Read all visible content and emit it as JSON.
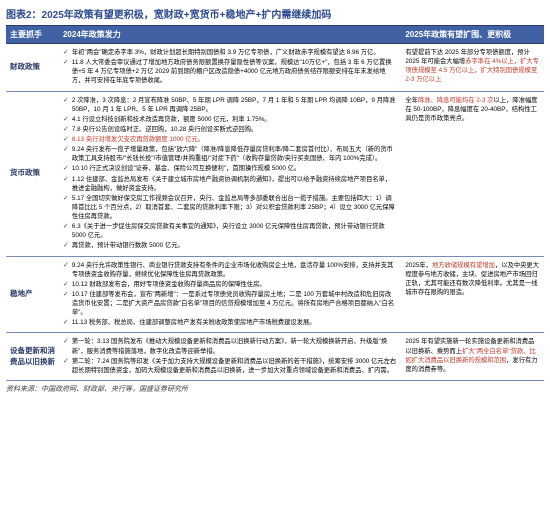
{
  "title": "图表2：2025年政策有望更积极，宽财政+宽货币+稳地产+扩内需继续加码",
  "headers": [
    "主要抓手",
    "2024年政策发力",
    "2025年政策有望扩围、更积极"
  ],
  "rows": [
    {
      "category": "财政政策",
      "policies_2024": [
        {
          "text": "年初\"两会\"确定赤字率 3%，财政计划超长期特别国债和 3.9 万亿专项债，广义财政赤字规模有望达 8.96 万亿。"
        },
        {
          "text": "11.8 人大常委会审议通过了增加地方政府债务限额置换存量隐性债等议案，规模达\"10万亿+\"，包括 3 年 6 万亿置换债+5 年 4 万亿专项债+2 万亿 2029 前到期的棚户区改造隐债+4000 亿元地方政府债务结存限额安排在年末发给地方，并可安排在年底专项债收尾。"
        }
      ],
      "outlook_2025_pre": "有望提前下达 2025 年部分专项债额度，预计 2025 年可能会大幅增",
      "outlook_2025_hl": "赤字率在 4%以上，扩大专项债规模至 4.5 万亿以上，扩大特别国债规模至 2-3 万亿以上"
    },
    {
      "category": "货币政策",
      "policies_2024": [
        {
          "text": "2 次降准，3 次降息：2 月宣布降准 50BP、5 年期 LPR 调降 25BP，7 月 1 年和 5 年期 LPR 均调降 10BP，9 月降准 50BP，10 月 1 年 LPR、5 年 LPR 再调降 25BP。"
        },
        {
          "text": "4.1 行设立科技创新和技术改造再贷款，额度 5000 亿元，利率 1.75%。"
        },
        {
          "text": "7.8 央行公告创设临时正、逆回购，10.28 央行创设买断式逆回购。"
        },
        {
          "text": "8.13 央行对增发欠支农再贷款额度 1000 亿元。",
          "hl": true
        },
        {
          "text": "9.24 央行发布一揽子增量政策，包括\"放六降\"（降准/降息降低存量房贷利率/降二套房首付比）、布局五大（新的货币政策工具支持股市/\"长钱长投\"/市值管理/并购重组/\"对症下药\"（收购存量贷款/央行买卖国债、年内 100%完成）。"
        },
        {
          "text": "10.10 行正式决议创设\"证券、基金、保险公司互换便利\"，首期操作规模 5000 亿。"
        },
        {
          "text": "1.12 住建部、金监总局发布《关于建立城市房地产融资协调机制的通知》，提出可以给予融资持续房地产项目名单，推进金融融构，做好资金支持。"
        },
        {
          "text": "5.17 全国切实做好保交房工作视频会议召开，央行、金监总局等多部委联合出台一揽子措施。主要包括四大：1）调降首比比 5 个百分点，2）取消首套、二套房的贷款利率下限；3）对公积金贷款利率 25BP；4）设立 3000 亿元保障性住房再贷款。"
        },
        {
          "text": "6.3《关于进一步促住房保交房贷款有关事宜的通知》，央行设立 3000 亿元保障性住房再贷款，预计带动银行贷款 5000 亿元。"
        },
        {
          "text": "再贷款，预计带动银行数款 5000 亿元。"
        }
      ],
      "outlook_2025_pre": "全年",
      "outlook_2025_hl": "降准、降息可能均在 2-3 次",
      "outlook_2025_tail": "以上，降准幅度在 50-100BP，降息幅度在 20-40BP，结构性工具仍是货币政策亮点。"
    },
    {
      "category": "稳地产",
      "policies_2024": [
        {
          "text": "9.24 央行允许政策性银行、商业银行贷款支持有条件的企业市场化收购房企土地，盘活存量 100%安排，支持并支其专项债资金收购存量，继续优化保障性住房再贷款政策。"
        },
        {
          "text": "10.12 财政部发布会，用好专项债资金收购存量商品房的保障性住房。"
        },
        {
          "text": "10.17 住建部等发布会，宣布\"两新增\"：一是系过专项债党员收购存量房土地；二是 100 万套城中村改造和危旧房改造货币化安置；二是扩大资产品房贷款\"白名单\"项目的信贷规模增加至 4 万亿元。将所有房地产合格项目都纳入\"白名单\"。"
        },
        {
          "text": "11.13 税务部、税总局、住建部调整房地产发有关税收政策使房地产市场税费建设发展。"
        }
      ],
      "outlook_2025_pre": "2025年，",
      "outlook_2025_hl": "地方收储规模有望增加",
      "outlook_2025_tail": "，以及中央更大程度参与地方收储，主块、促进房地产市场回归正轨，尤其可能还有数次降低利率。尤其是一线城市存在限购的限造。"
    },
    {
      "category": "设备更新和消费品以旧换新",
      "policies_2024": [
        {
          "text": "第一轮：3.13 国务院发布《推动大规模设备更新和消费品以旧换新行动方案》，新一轮大规模换新开启、升级版\"焕新\"，服务消费等措施落地，数字化改造等迎新举措。"
        },
        {
          "text": "第二轮：7.24 国务院等印发《关于加力支持大规模设备更新和消费品以旧换新的若干措施》，统筹安排 3000 亿元左右超长期特别国债资金，加码大规模设备更新和消费品以旧换新，进一步加大对重点领域设备更新和消费品、扩内需。"
        }
      ],
      "outlook_2025_pre": "2025 年有望实施新一轮实施设备更新和消费品以旧换新、乘势而上",
      "outlook_2025_hl": "扩大\"两全白名单\"贷款、比如扩大消费品以旧换新的规模和范围",
      "outlook_2025_tail": "，发行有力度的消费券等。"
    }
  ],
  "source": "资料来源：中国政府网、财政部、央行等，国盛证券研究所"
}
